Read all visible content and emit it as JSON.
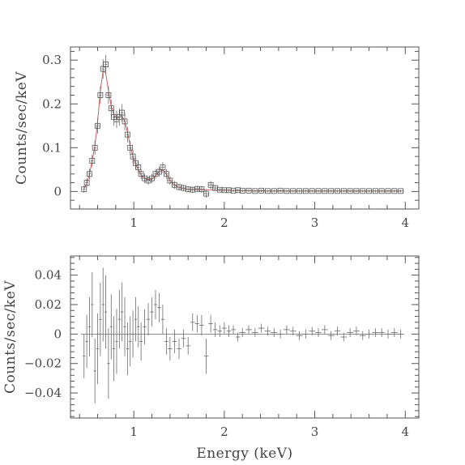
{
  "chart_data": [
    {
      "type": "scatter",
      "ylabel": "Counts/sec/keV",
      "xlim": [
        0.3,
        4.15
      ],
      "ylim": [
        -0.04,
        0.33
      ],
      "xticks": [
        "1",
        "2",
        "3",
        "4"
      ],
      "yticks": [
        "0",
        "0.1",
        "0.2",
        "0.3"
      ],
      "ytick_values": [
        0,
        0.1,
        0.2,
        0.3
      ],
      "model_color": "#d06060",
      "series": [
        {
          "x": [
            0.45,
            0.48,
            0.51,
            0.54,
            0.57,
            0.6,
            0.63,
            0.66,
            0.69,
            0.72,
            0.75,
            0.78,
            0.81,
            0.84,
            0.87,
            0.9,
            0.93,
            0.96,
            0.99,
            1.02,
            1.05,
            1.08,
            1.12,
            1.16,
            1.2,
            1.24,
            1.28,
            1.32,
            1.36,
            1.4,
            1.45,
            1.5,
            1.55,
            1.6,
            1.65,
            1.7,
            1.75,
            1.8,
            1.85,
            1.9,
            1.95,
            2.0,
            2.05,
            2.1,
            2.15,
            2.2,
            2.27,
            2.34,
            2.41,
            2.48,
            2.55,
            2.62,
            2.69,
            2.76,
            2.83,
            2.9,
            2.97,
            3.04,
            3.11,
            3.18,
            3.25,
            3.32,
            3.39,
            3.46,
            3.53,
            3.6,
            3.67,
            3.74,
            3.81,
            3.88,
            3.95
          ],
          "y": [
            0.005,
            0.02,
            0.04,
            0.07,
            0.1,
            0.15,
            0.22,
            0.28,
            0.29,
            0.22,
            0.19,
            0.17,
            0.165,
            0.17,
            0.18,
            0.16,
            0.13,
            0.1,
            0.08,
            0.065,
            0.055,
            0.04,
            0.03,
            0.025,
            0.03,
            0.04,
            0.045,
            0.055,
            0.04,
            0.025,
            0.015,
            0.01,
            0.008,
            0.005,
            0.004,
            0.006,
            0.005,
            -0.005,
            0.015,
            0.008,
            0.004,
            0.003,
            0.003,
            0.002,
            0.003,
            0.002,
            0.002,
            0.001,
            0.002,
            0.001,
            0.001,
            0.002,
            0.001,
            0.001,
            0.001,
            0.001,
            0.001,
            0.001,
            0.001,
            0.001,
            0.001,
            0.001,
            0.001,
            0.001,
            0.001,
            0.001,
            0.001,
            0.001,
            0.001,
            0.001,
            0.001
          ],
          "yerr": [
            0.008,
            0.01,
            0.012,
            0.014,
            0.016,
            0.018,
            0.02,
            0.022,
            0.022,
            0.02,
            0.02,
            0.02,
            0.02,
            0.02,
            0.02,
            0.02,
            0.018,
            0.016,
            0.015,
            0.014,
            0.013,
            0.012,
            0.011,
            0.01,
            0.01,
            0.011,
            0.012,
            0.012,
            0.011,
            0.01,
            0.009,
            0.008,
            0.007,
            0.007,
            0.007,
            0.007,
            0.008,
            0.009,
            0.009,
            0.006,
            0.004,
            0.004,
            0.004,
            0.003,
            0.003,
            0.003,
            0.003,
            0.003,
            0.003,
            0.003,
            0.003,
            0.003,
            0.003,
            0.003,
            0.003,
            0.003,
            0.003,
            0.003,
            0.003,
            0.003,
            0.003,
            0.003,
            0.003,
            0.003,
            0.003,
            0.003,
            0.003,
            0.003,
            0.003,
            0.003,
            0.003
          ],
          "model": [
            0.007,
            0.018,
            0.04,
            0.07,
            0.105,
            0.16,
            0.23,
            0.275,
            0.27,
            0.23,
            0.195,
            0.175,
            0.168,
            0.17,
            0.172,
            0.16,
            0.135,
            0.105,
            0.08,
            0.062,
            0.05,
            0.038,
            0.03,
            0.027,
            0.028,
            0.036,
            0.045,
            0.05,
            0.04,
            0.025,
            0.015,
            0.009,
            0.007,
            0.005,
            0.005,
            0.005,
            0.004,
            0.004,
            0.004,
            0.003,
            0.003,
            0.003,
            0.003,
            0.002,
            0.002,
            0.002,
            0.002,
            0.001,
            0.001,
            0.001,
            0.001,
            0.001,
            0.001,
            0.001,
            0.001,
            0.001,
            0.001,
            0.001,
            0.001,
            0.001,
            0.001,
            0.001,
            0.001,
            0.001,
            0.001,
            0.001,
            0.001,
            0.001,
            0.001,
            0.001,
            0.001
          ]
        }
      ]
    },
    {
      "type": "scatter",
      "xlabel": "Energy (keV)",
      "ylabel": "Counts/sec/keV",
      "xlim": [
        0.3,
        4.15
      ],
      "ylim": [
        -0.057,
        0.053
      ],
      "xticks": [
        "1",
        "2",
        "3",
        "4"
      ],
      "yticks": [
        "0.04",
        "0.02",
        "0",
        "−0.02",
        "−0.04"
      ],
      "ytick_values": [
        0.04,
        0.02,
        0,
        -0.02,
        -0.04
      ],
      "series": [
        {
          "x": [
            0.45,
            0.48,
            0.51,
            0.54,
            0.57,
            0.6,
            0.63,
            0.66,
            0.69,
            0.72,
            0.75,
            0.78,
            0.81,
            0.84,
            0.87,
            0.9,
            0.93,
            0.96,
            0.99,
            1.02,
            1.05,
            1.08,
            1.12,
            1.16,
            1.2,
            1.24,
            1.28,
            1.32,
            1.36,
            1.4,
            1.45,
            1.5,
            1.55,
            1.6,
            1.65,
            1.7,
            1.75,
            1.8,
            1.85,
            1.9,
            1.95,
            2.0,
            2.05,
            2.1,
            2.15,
            2.2,
            2.27,
            2.34,
            2.41,
            2.48,
            2.55,
            2.62,
            2.69,
            2.76,
            2.83,
            2.9,
            2.97,
            3.04,
            3.11,
            3.18,
            3.25,
            3.32,
            3.39,
            3.46,
            3.53,
            3.6,
            3.67,
            3.74,
            3.81,
            3.88,
            3.95
          ],
          "y": [
            -0.015,
            -0.005,
            0.005,
            0.02,
            -0.025,
            -0.01,
            0.01,
            0.02,
            0.015,
            -0.02,
            0.005,
            -0.01,
            -0.005,
            0.01,
            0.015,
            0.005,
            -0.01,
            -0.005,
            0.0,
            0.01,
            0.005,
            -0.005,
            0.005,
            0.01,
            0.015,
            0.02,
            0.018,
            0.01,
            -0.005,
            -0.01,
            -0.005,
            -0.01,
            -0.003,
            -0.008,
            0.008,
            0.007,
            0.006,
            -0.015,
            0.007,
            0.003,
            0.002,
            0.004,
            0.002,
            0.003,
            -0.002,
            0.001,
            0.003,
            0.001,
            0.004,
            0.002,
            0.001,
            0.0,
            0.003,
            0.002,
            -0.001,
            0.0,
            0.002,
            0.001,
            0.003,
            -0.001,
            0.002,
            -0.002,
            0.001,
            0.002,
            -0.001,
            0.0,
            0.001,
            0.001,
            0.0,
            0.001,
            0.0
          ],
          "yerr": [
            0.015,
            0.018,
            0.02,
            0.022,
            0.022,
            0.024,
            0.025,
            0.025,
            0.025,
            0.024,
            0.022,
            0.022,
            0.022,
            0.02,
            0.02,
            0.02,
            0.018,
            0.017,
            0.016,
            0.015,
            0.014,
            0.013,
            0.012,
            0.011,
            0.01,
            0.01,
            0.01,
            0.01,
            0.009,
            0.008,
            0.008,
            0.007,
            0.006,
            0.006,
            0.006,
            0.006,
            0.007,
            0.012,
            0.006,
            0.005,
            0.004,
            0.004,
            0.004,
            0.003,
            0.003,
            0.003,
            0.003,
            0.003,
            0.003,
            0.003,
            0.003,
            0.003,
            0.003,
            0.003,
            0.003,
            0.003,
            0.003,
            0.003,
            0.003,
            0.003,
            0.003,
            0.003,
            0.003,
            0.003,
            0.003,
            0.003,
            0.003,
            0.003,
            0.003,
            0.003,
            0.003
          ]
        }
      ]
    }
  ]
}
